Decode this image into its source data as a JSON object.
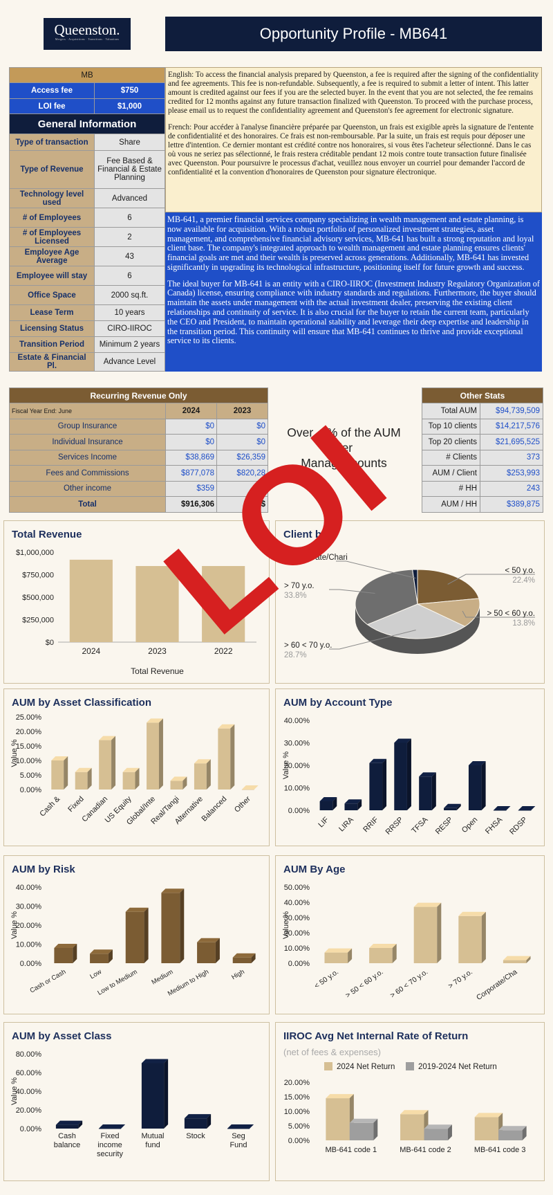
{
  "header": {
    "logo_text": "Queenston.",
    "logo_tagline": "Mergers · Acquisitions · Transitions · Valuations",
    "title": "Opportunity Profile - MB641"
  },
  "general": {
    "mb_label": "MB",
    "access_fee_label": "Access fee",
    "access_fee": "$750",
    "loi_fee_label": "LOI fee",
    "loi_fee": "$1,000",
    "heading": "General Information",
    "rows": [
      {
        "label": "Type of transaction",
        "value": "Share"
      },
      {
        "label": "Type of Revenue",
        "value": "Fee Based & Financial & Estate Planning"
      },
      {
        "label": "Technology level used",
        "value": "Advanced"
      },
      {
        "label": "# of Employees",
        "value": "6"
      },
      {
        "label": "# of Employees Licensed",
        "value": "2"
      },
      {
        "label": "Employee Age Average",
        "value": "43"
      },
      {
        "label": "Employee will stay",
        "value": "6"
      },
      {
        "label": "Office Space",
        "value": "2000 sq.ft."
      },
      {
        "label": "Lease Term",
        "value": "10 years"
      },
      {
        "label": "Licensing Status",
        "value": "CIRO-IIROC"
      },
      {
        "label": "Transition Period",
        "value": "Minimum 2 years"
      },
      {
        "label": "Estate & Financial Pl.",
        "value": "Advance Level"
      }
    ]
  },
  "fees_text": {
    "english": "English: To access the financial analysis prepared by Queenston, a fee is required after the signing of the confidentiality and fee agreements. This fee is non-refundable. Subsequently, a fee is required to submit a letter of intent. This latter amount is credited against our fees if you are the selected buyer. In the event that you are not selected, the fee remains credited for 12 months against any future transaction finalized with Queenston. To proceed with the purchase process, please email us to request the confidentiality agreement and Queenston's fee agreement for electronic signature.",
    "french": "French: Pour accéder à l'analyse financière préparée par Queenston, un frais est exigible après la signature de l'entente de confidentialité et des honoraires. Ce frais est non-remboursable. Par la suite, un frais est requis pour déposer une lettre d'intention. Ce dernier montant est crédité contre nos honoraires, si vous êtes l'acheteur sélectionné. Dans le cas où vous ne seriez pas sélectionné, le frais restera créditable pendant 12 mois contre toute transaction future finalisée avec Queenston. Pour poursuivre le processus d'achat, veuillez nous envoyer un courriel pour demander l'accord de confidentialité et la convention d'honoraires de Queenston pour signature électronique."
  },
  "description": {
    "p1": "MB-641, a premier financial services company specializing in wealth management and estate planning, is now available for acquisition. With a robust portfolio of personalized investment strategies, asset management, and comprehensive financial advisory services, MB-641 has built a strong reputation and loyal client base. The company's integrated approach to wealth management and estate planning ensures clients' financial goals are met and their wealth is preserved across generations. Additionally, MB-641 has invested significantly in upgrading its technological infrastructure, positioning itself for future growth and success.",
    "p2": "The ideal buyer for MB-641 is an entity with a CIRO-IIROC (Investment Industry Regulatory Organization of Canada) license, ensuring compliance with industry standards and regulations. Furthermore, the buyer should maintain the assets under management with the actual investment dealer, preserving the existing client relationships and continuity of service. It is also crucial for the buyer to retain the current team, particularly the CEO and President, to maintain operational stability and leverage their deep expertise and leadership in the transition period. This continuity will ensure that MB-641 continues to thrive and provide exceptional service to its clients."
  },
  "revenue": {
    "heading": "Recurring Revenue Only",
    "fiscal": "Fiscal Year End: June",
    "y1": "2024",
    "y2": "2023",
    "rows": [
      {
        "label": "Group Insurance",
        "v1": "$0",
        "v2": "$0"
      },
      {
        "label": "Individual Insurance",
        "v1": "$0",
        "v2": "$0"
      },
      {
        "label": "Services Income",
        "v1": "$38,869",
        "v2": "$26,359"
      },
      {
        "label": "Fees and Commissions",
        "v1": "$877,078",
        "v2": "$820,28"
      },
      {
        "label": "Other income",
        "v1": "$359",
        "v2": ""
      }
    ],
    "total_label": "Total",
    "total_v1": "$916,306",
    "total_v2": "$"
  },
  "other_stats": {
    "heading": "Other Stats",
    "rows": [
      {
        "label": "Total AUM",
        "value": "$94,739,509"
      },
      {
        "label": "Top 10 clients",
        "value": "$14,217,576"
      },
      {
        "label": "Top 20 clients",
        "value": "$21,695,525"
      },
      {
        "label": "# Clients",
        "value": "373"
      },
      {
        "label": "AUM / Client",
        "value": "$253,993"
      },
      {
        "label": "# HH",
        "value": "243"
      },
      {
        "label": "AUM / HH",
        "value": "$389,875"
      }
    ]
  },
  "aum_note": {
    "l1": "Over",
    "l1b": "% of the AUM",
    "l2": "der",
    "l3": "Manag",
    "l3b": "counts"
  },
  "watermark": "LOI",
  "chart_data": [
    {
      "id": "total-revenue",
      "type": "bar",
      "title": "Total Revenue",
      "xlabel": "Total Revenue",
      "categories": [
        "2024",
        "2023",
        "2022"
      ],
      "values": [
        916306,
        846000,
        846000
      ],
      "ylim": [
        0,
        1000000
      ],
      "yticks": [
        "$0",
        "$250,000",
        "$500,000",
        "$750,000",
        "$1,000,000"
      ],
      "color": "#d6bf93"
    },
    {
      "id": "client-base",
      "type": "pie",
      "title": "Client b",
      "slices": [
        {
          "label": "< 50 y.o.",
          "value": 22.4,
          "pct": "22.4%",
          "color": "#7b5c33"
        },
        {
          "label": "> 50 < 60 y.o.",
          "value": 13.8,
          "pct": "13.8%",
          "color": "#c8ae86"
        },
        {
          "label": "> 60 < 70 y.o.",
          "value": 28.7,
          "pct": "28.7%",
          "color": "#cfcfcf"
        },
        {
          "label": "> 70 y.o.",
          "value": 33.8,
          "pct": "33.8%",
          "color": "#6e6e6e"
        },
        {
          "label": "Corporate/Chari",
          "value": 1.3,
          "pct": "",
          "color": "#0f1d3c"
        }
      ]
    },
    {
      "id": "aum-classification",
      "type": "bar",
      "title": "AUM by Asset Classification",
      "ylabel": "Value %",
      "categories": [
        "Cash &",
        "Fixed",
        "Canadian",
        "US Equity",
        "Global/Inte",
        "Real/Tangi",
        "Alternative",
        "Balanced",
        "Other"
      ],
      "values": [
        10,
        6,
        17,
        6,
        23,
        3,
        9,
        21,
        0
      ],
      "ylim": [
        0,
        25
      ],
      "yticks": [
        "0.00%",
        "5.00%",
        "10.00%",
        "15.00%",
        "20.00%",
        "25.00%"
      ],
      "color": "#d6bf93"
    },
    {
      "id": "aum-account-type",
      "type": "bar",
      "title": "AUM by Account Type",
      "ylabel": "Value %",
      "categories": [
        "LIF",
        "LIRA",
        "RRIF",
        "RRSP",
        "TFSA",
        "RESP",
        "Open",
        "FHSA",
        "RDSP"
      ],
      "values": [
        4,
        3,
        21,
        30,
        15,
        1,
        20,
        0,
        0
      ],
      "ylim": [
        0,
        40
      ],
      "yticks": [
        "0.00%",
        "10.00%",
        "20.00%",
        "30.00%",
        "40.00%"
      ],
      "color": "#0f1d3c"
    },
    {
      "id": "aum-risk",
      "type": "bar",
      "title": "AUM by Risk",
      "ylabel": "Value %",
      "categories": [
        "Cash or Cash",
        "Low",
        "Low to Medium",
        "Medium",
        "Medium to High",
        "High"
      ],
      "values": [
        8,
        5,
        27,
        37,
        11,
        3
      ],
      "ylim": [
        0,
        40
      ],
      "yticks": [
        "0.00%",
        "10.00%",
        "20.00%",
        "30.00%",
        "40.00%"
      ],
      "color": "#7b5c33"
    },
    {
      "id": "aum-age",
      "type": "bar",
      "title": "AUM By Age",
      "ylabel": "Value %",
      "categories": [
        "< 50 y.o.",
        "> 50 < 60 y.o.",
        "> 60 < 70 y.o.",
        "> 70 y.o.",
        "Corporate/Cha"
      ],
      "values": [
        7,
        10,
        37,
        31,
        2
      ],
      "ylim": [
        0,
        50
      ],
      "yticks": [
        "0.00%",
        "10.00%",
        "20.00%",
        "30.00%",
        "40.00%",
        "50.00%"
      ],
      "color": "#d6bf93"
    },
    {
      "id": "aum-asset-class",
      "type": "bar",
      "title": "AUM by Asset Class",
      "ylabel": "Value %",
      "categories": [
        "Cash balance",
        "Fixed income security",
        "Mutual fund",
        "Stock",
        "Seg Fund"
      ],
      "values": [
        4,
        0,
        70,
        11,
        0
      ],
      "ylim": [
        0,
        80
      ],
      "yticks": [
        "0.00%",
        "20.00%",
        "40.00%",
        "60.00%",
        "80.00%"
      ],
      "color": "#0f1d3c"
    },
    {
      "id": "iiroc-return",
      "type": "bar",
      "title": "IIROC Avg Net Internal Rate of Return",
      "subtitle": "(net of fees & expenses)",
      "categories": [
        "MB-641 code 1",
        "MB-641 code 2",
        "MB-641 code 3"
      ],
      "series": [
        {
          "name": "2024 Net Return",
          "values": [
            14.5,
            9,
            8
          ],
          "color": "#d6bf93"
        },
        {
          "name": "2019-2024 Net Return",
          "values": [
            6,
            4,
            3.5
          ],
          "color": "#9e9e9e"
        }
      ],
      "ylim": [
        0,
        20
      ],
      "yticks": [
        "0.00%",
        "5.00%",
        "10.00%",
        "15.00%",
        "20.00%"
      ]
    }
  ]
}
